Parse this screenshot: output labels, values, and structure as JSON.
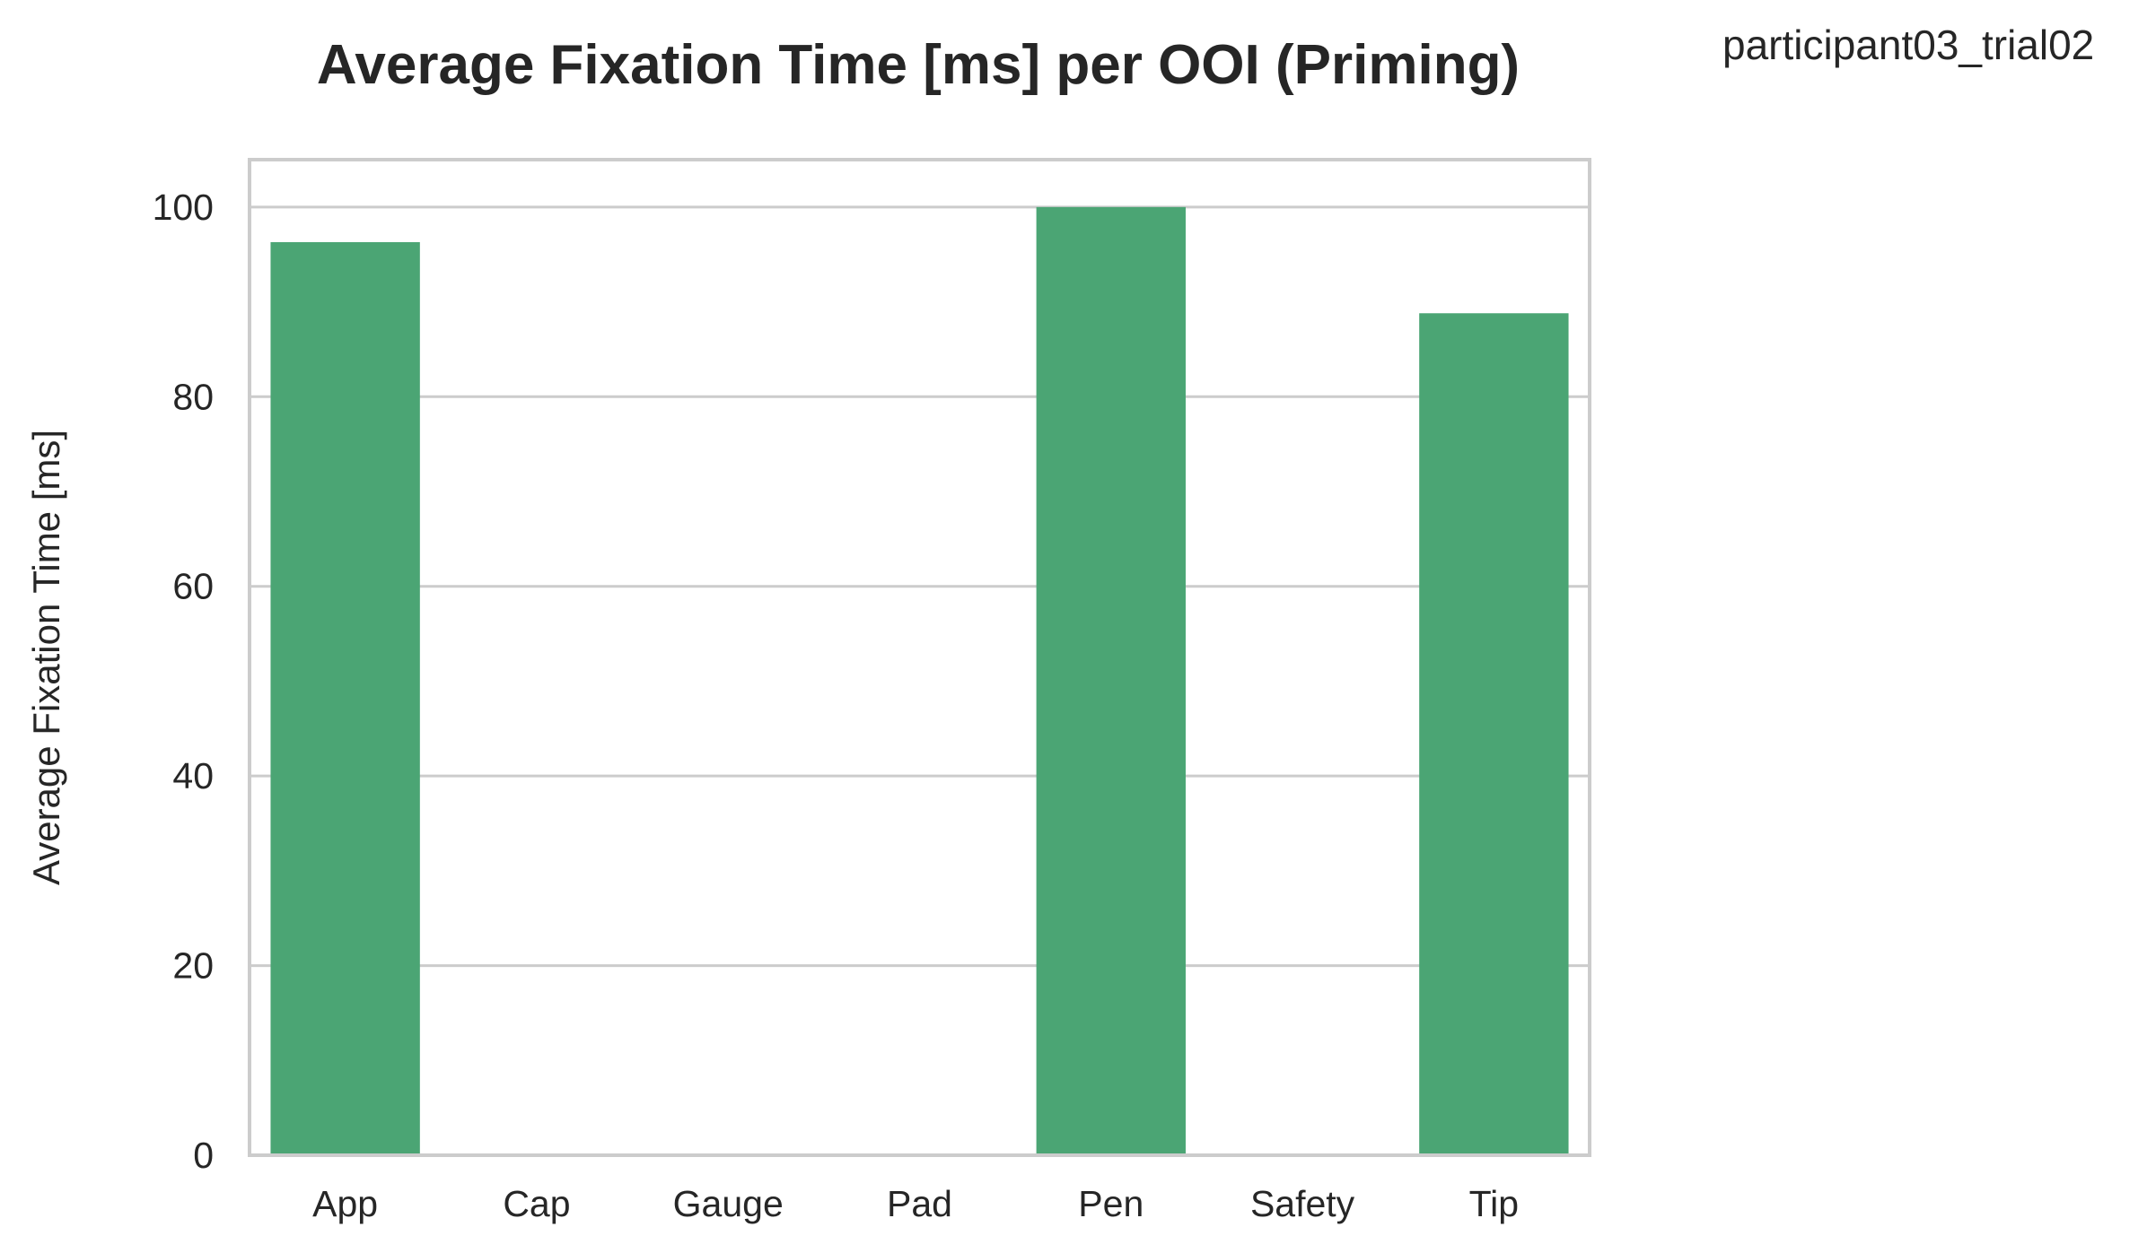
{
  "chart_data": {
    "type": "bar",
    "title": "Average Fixation Time [ms] per OOI (Priming)",
    "corner_label": "participant03_trial02",
    "xlabel": "",
    "ylabel": "Average Fixation Time [ms]",
    "categories": [
      "App",
      "Cap",
      "Gauge",
      "Pad",
      "Pen",
      "Safety",
      "Tip"
    ],
    "values": [
      96.3,
      0,
      0,
      0,
      100,
      0,
      88.8
    ],
    "ylim": [
      0,
      105
    ],
    "yticks": [
      0,
      20,
      40,
      60,
      80,
      100
    ],
    "grid": true,
    "legend": "none",
    "colors": {
      "bar": "#4BA574",
      "grid": "#CCCCCC",
      "frame": "#CCCCCC",
      "text": "#262626"
    }
  }
}
